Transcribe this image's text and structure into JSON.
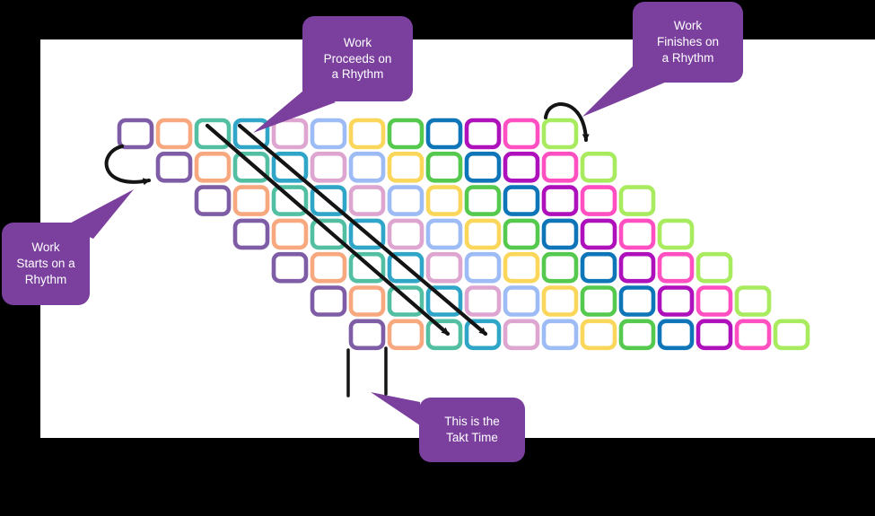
{
  "diagram": {
    "background": "#000000",
    "surface": "#ffffff",
    "arrow_color": "#141414",
    "callout_style": {
      "fill": "#7b3f9e",
      "text_color": "#ffffff"
    },
    "palette": [
      "#7e5da6",
      "#f8a87e",
      "#52bfa2",
      "#2fa5c8",
      "#dda5cf",
      "#9dbbf4",
      "#fad75b",
      "#55c94e",
      "#0e76b8",
      "#ae10bc",
      "#ff4fc0",
      "#a8eb5e"
    ],
    "grid": {
      "rows": 7,
      "cols": 12,
      "row_shift_cells": 1
    },
    "callouts": {
      "starts": "Work\nStarts on a\nRhythm",
      "proceeds": "Work\nProceeds on\na Rhythm",
      "finishes": "Work\nFinishes on\na Rhythm",
      "takt": "This is the\nTakt Time"
    }
  }
}
